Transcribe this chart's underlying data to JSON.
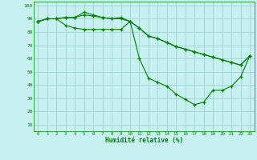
{
  "xlabel": "Humidité relative (%)",
  "background_color": "#c8f0f0",
  "grid_color": "#a0d8d8",
  "line_color": "#008000",
  "xlim": [
    -0.5,
    23.5
  ],
  "ylim": [
    5,
    103
  ],
  "yticks": [
    10,
    20,
    30,
    40,
    50,
    60,
    70,
    80,
    90,
    100
  ],
  "xticks": [
    0,
    1,
    2,
    3,
    4,
    5,
    6,
    7,
    8,
    9,
    10,
    11,
    12,
    13,
    14,
    15,
    16,
    17,
    18,
    19,
    20,
    21,
    22,
    23
  ],
  "series": [
    [
      88,
      90,
      90,
      91,
      91,
      95,
      93,
      91,
      90,
      91,
      88,
      60,
      45,
      42,
      39,
      33,
      29,
      25,
      27,
      36,
      36,
      39,
      46,
      62
    ],
    [
      88,
      90,
      90,
      91,
      91,
      93,
      92,
      91,
      90,
      90,
      88,
      83,
      77,
      75,
      72,
      69,
      67,
      65,
      63,
      61,
      59,
      57,
      55,
      62
    ],
    [
      88,
      90,
      90,
      85,
      83,
      82,
      82,
      82,
      82,
      82,
      88,
      83,
      77,
      75,
      72,
      69,
      67,
      65,
      63,
      61,
      59,
      57,
      55,
      62
    ]
  ]
}
